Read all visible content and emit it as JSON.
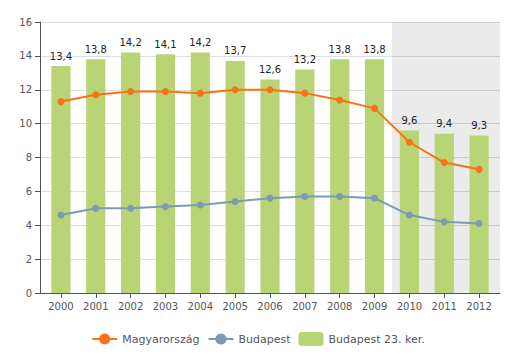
{
  "chart_data": {
    "type": "bar",
    "x": [
      2000,
      2001,
      2002,
      2003,
      2004,
      2005,
      2006,
      2007,
      2008,
      2009,
      2010,
      2011,
      2012
    ],
    "xlim": [
      1999.4,
      2012.6
    ],
    "xticks": [
      2000,
      2001,
      2002,
      2003,
      2004,
      2005,
      2006,
      2007,
      2008,
      2009,
      2010,
      2011,
      2012
    ],
    "ylim": [
      0,
      16
    ],
    "yticks": [
      0,
      2,
      4,
      6,
      8,
      10,
      12,
      14,
      16
    ],
    "grid": true,
    "legend": "bottom",
    "shaded_from": 2009.5,
    "series": [
      {
        "name": "Magyarország",
        "type": "line",
        "marker": "circle",
        "color": "#f97316",
        "values": [
          11.3,
          11.7,
          11.9,
          11.9,
          11.8,
          12.0,
          12.0,
          11.8,
          11.4,
          10.9,
          8.9,
          7.7,
          7.3
        ]
      },
      {
        "name": "Budapest",
        "type": "line",
        "marker": "circle",
        "color": "#7a9ab5",
        "values": [
          4.6,
          5.0,
          5.0,
          5.1,
          5.2,
          5.4,
          5.6,
          5.7,
          5.7,
          5.6,
          4.6,
          4.2,
          4.1
        ]
      },
      {
        "name": "Budapest 23. ker.",
        "type": "bar",
        "color": "#b8d474",
        "data_labels": true,
        "values": [
          13.4,
          13.8,
          14.2,
          14.1,
          14.2,
          13.7,
          12.6,
          13.2,
          13.8,
          13.8,
          9.6,
          9.4,
          9.3
        ],
        "value_labels": [
          "13,4",
          "13,8",
          "14,2",
          "14,1",
          "14,2",
          "13,7",
          "12,6",
          "13,2",
          "13,8",
          "13,8",
          "9,6",
          "9,4",
          "9,3"
        ]
      }
    ]
  }
}
